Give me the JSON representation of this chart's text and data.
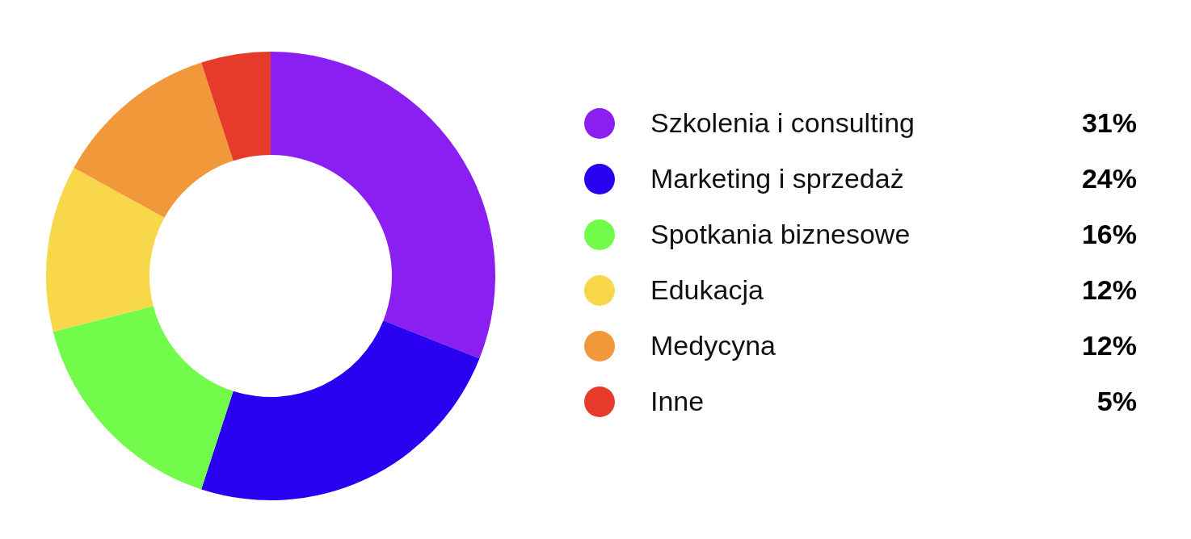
{
  "chart_data": {
    "type": "donut",
    "categories": [
      "Szkolenia i consulting",
      "Marketing i sprzedaż",
      "Spotkania biznesowe",
      "Edukacja",
      "Medycyna",
      "Inne"
    ],
    "values": [
      31,
      24,
      16,
      12,
      12,
      5
    ],
    "colors": [
      "#8b1ef0",
      "#2a00f0",
      "#72fb4a",
      "#f8d84a",
      "#f0983a",
      "#e63a2a"
    ],
    "value_labels": [
      "31%",
      "24%",
      "16%",
      "12%",
      "12%",
      "5%"
    ],
    "legend": "right"
  }
}
